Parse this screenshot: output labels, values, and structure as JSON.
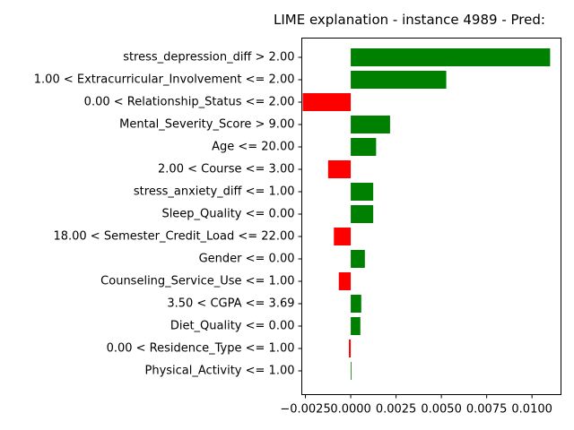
{
  "chart_data": {
    "type": "bar",
    "orientation": "horizontal",
    "title": "LIME explanation - instance 4989 - Pred:",
    "xlabel": "",
    "ylabel": "",
    "xlim": [
      -0.0027,
      0.0116
    ],
    "x_ticks": [
      -0.0025,
      0.0,
      0.0025,
      0.005,
      0.0075,
      0.01
    ],
    "x_tick_labels": [
      "−0.0025",
      "0.0000",
      "0.0025",
      "0.0050",
      "0.0075",
      "0.0100"
    ],
    "grid": false,
    "colors": {
      "positive": "#008000",
      "negative": "#ff0000"
    },
    "categories": [
      "stress_depression_diff > 2.00",
      "1.00 < Extracurricular_Involvement <= 2.00",
      "0.00 < Relationship_Status <= 2.00",
      "Mental_Severity_Score > 9.00",
      "Age <= 20.00",
      "2.00 < Course <= 3.00",
      "stress_anxiety_diff <= 1.00",
      "Sleep_Quality <= 0.00",
      "18.00 < Semester_Credit_Load <= 22.00",
      "Gender <= 0.00",
      "Counseling_Service_Use <= 1.00",
      "3.50 < CGPA <= 3.69",
      "Diet_Quality <= 0.00",
      "0.00 < Residence_Type <= 1.00",
      "Physical_Activity <= 1.00"
    ],
    "values": [
      0.011,
      0.00527,
      -0.00265,
      0.00217,
      0.0014,
      -0.00125,
      0.00124,
      0.00124,
      -0.00093,
      0.00078,
      -0.00066,
      0.00058,
      0.00053,
      -0.0001,
      3e-05
    ]
  }
}
